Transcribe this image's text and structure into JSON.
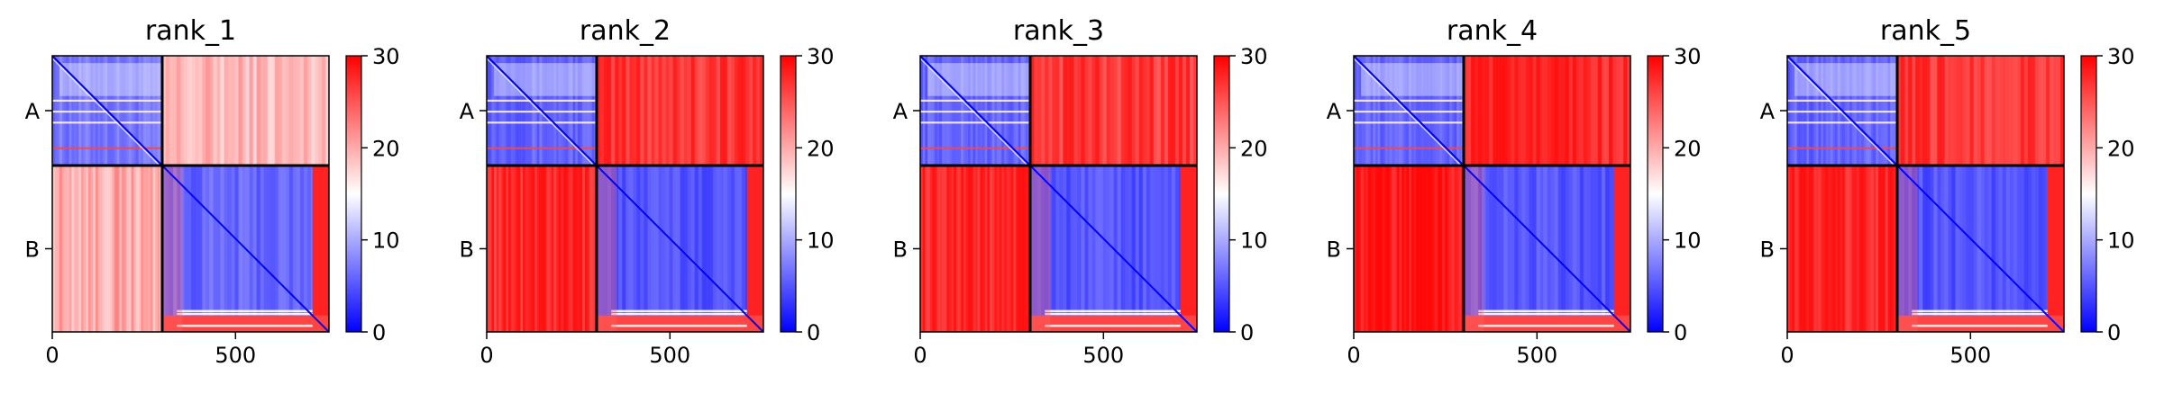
{
  "chart_data": [
    {
      "type": "heatmap",
      "title": "rank_1",
      "x_tick_labels": [
        "0",
        "500"
      ],
      "x_ticks": [
        0,
        500
      ],
      "y_tick_labels": [
        "A",
        "B"
      ],
      "chain_lengths": {
        "A": 300,
        "B": 455
      },
      "total_residues": 755,
      "colorbar": {
        "min": 0,
        "max": 30,
        "ticks": [
          0,
          10,
          20,
          30
        ],
        "tick_labels": [
          "0",
          "10",
          "20",
          "30"
        ],
        "colormap": "bwr"
      },
      "block_means": {
        "A-A": 7,
        "A-B": 19,
        "B-A": 20,
        "B-B": 6
      }
    },
    {
      "type": "heatmap",
      "title": "rank_2",
      "x_tick_labels": [
        "0",
        "500"
      ],
      "x_ticks": [
        0,
        500
      ],
      "y_tick_labels": [
        "A",
        "B"
      ],
      "chain_lengths": {
        "A": 300,
        "B": 455
      },
      "total_residues": 755,
      "colorbar": {
        "min": 0,
        "max": 30,
        "ticks": [
          0,
          10,
          20,
          30
        ],
        "tick_labels": [
          "0",
          "10",
          "20",
          "30"
        ],
        "colormap": "bwr"
      },
      "block_means": {
        "A-A": 6,
        "A-B": 27,
        "B-A": 28,
        "B-B": 5
      }
    },
    {
      "type": "heatmap",
      "title": "rank_3",
      "x_tick_labels": [
        "0",
        "500"
      ],
      "x_ticks": [
        0,
        500
      ],
      "y_tick_labels": [
        "A",
        "B"
      ],
      "chain_lengths": {
        "A": 300,
        "B": 455
      },
      "total_residues": 755,
      "colorbar": {
        "min": 0,
        "max": 30,
        "ticks": [
          0,
          10,
          20,
          30
        ],
        "tick_labels": [
          "0",
          "10",
          "20",
          "30"
        ],
        "colormap": "bwr"
      },
      "block_means": {
        "A-A": 6,
        "A-B": 27,
        "B-A": 28,
        "B-B": 5
      }
    },
    {
      "type": "heatmap",
      "title": "rank_4",
      "x_tick_labels": [
        "0",
        "500"
      ],
      "x_ticks": [
        0,
        500
      ],
      "y_tick_labels": [
        "A",
        "B"
      ],
      "chain_lengths": {
        "A": 300,
        "B": 455
      },
      "total_residues": 755,
      "colorbar": {
        "min": 0,
        "max": 30,
        "ticks": [
          0,
          10,
          20,
          30
        ],
        "tick_labels": [
          "0",
          "10",
          "20",
          "30"
        ],
        "colormap": "bwr"
      },
      "block_means": {
        "A-A": 6,
        "A-B": 28,
        "B-A": 29,
        "B-B": 5
      }
    },
    {
      "type": "heatmap",
      "title": "rank_5",
      "x_tick_labels": [
        "0",
        "500"
      ],
      "x_ticks": [
        0,
        500
      ],
      "y_tick_labels": [
        "A",
        "B"
      ],
      "chain_lengths": {
        "A": 300,
        "B": 455
      },
      "total_residues": 755,
      "colorbar": {
        "min": 0,
        "max": 30,
        "ticks": [
          0,
          10,
          20,
          30
        ],
        "tick_labels": [
          "0",
          "10",
          "20",
          "30"
        ],
        "colormap": "bwr"
      },
      "block_means": {
        "A-A": 6,
        "A-B": 27,
        "B-A": 28,
        "B-B": 5
      }
    }
  ]
}
